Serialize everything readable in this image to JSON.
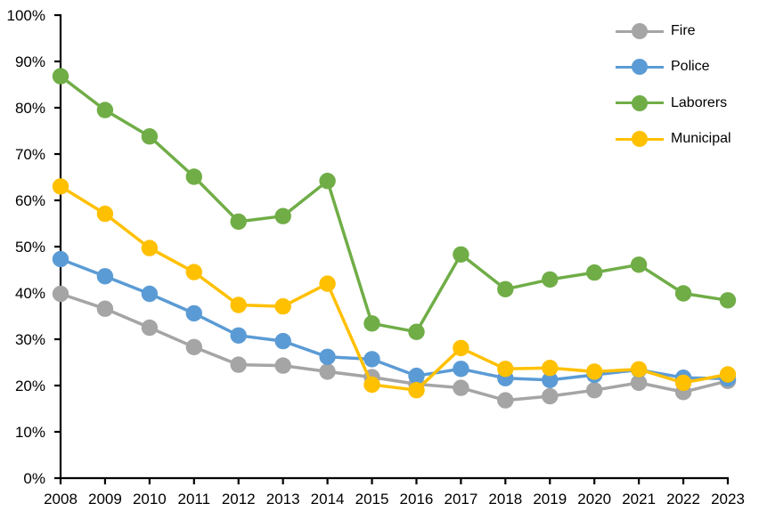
{
  "chart_data": {
    "type": "line",
    "x": [
      "2008",
      "2009",
      "2010",
      "2011",
      "2012",
      "2013",
      "2014",
      "2015",
      "2016",
      "2017",
      "2018",
      "2019",
      "2020",
      "2021",
      "2022",
      "2023"
    ],
    "series": [
      {
        "name": "Fire",
        "color": "#A5A5A5",
        "values": [
          39.8,
          36.6,
          32.5,
          28.3,
          24.5,
          24.3,
          23.0,
          21.8,
          20.3,
          19.5,
          16.8,
          17.7,
          19.0,
          20.6,
          18.6,
          21.0
        ]
      },
      {
        "name": "Police",
        "color": "#5B9BD5",
        "values": [
          47.3,
          43.6,
          39.8,
          35.6,
          30.8,
          29.6,
          26.2,
          25.7,
          22.1,
          23.6,
          21.6,
          21.2,
          22.3,
          23.4,
          21.7,
          21.5
        ]
      },
      {
        "name": "Laborers",
        "color": "#70AD47",
        "values": [
          86.8,
          79.5,
          73.8,
          65.1,
          55.4,
          56.6,
          64.2,
          33.4,
          31.6,
          48.3,
          40.8,
          42.9,
          44.4,
          46.1,
          39.9,
          38.4
        ]
      },
      {
        "name": "Municipal",
        "color": "#FFC000",
        "values": [
          63.0,
          57.1,
          49.7,
          44.5,
          37.4,
          37.1,
          42.0,
          20.2,
          19.0,
          28.1,
          23.6,
          23.8,
          23.0,
          23.5,
          20.6,
          22.4
        ]
      }
    ],
    "title": "",
    "xlabel": "",
    "ylabel": "",
    "ylim": [
      0,
      100
    ],
    "y_tick_step": 10,
    "y_ticks": [
      "0%",
      "10%",
      "20%",
      "30%",
      "40%",
      "50%",
      "60%",
      "70%",
      "80%",
      "90%",
      "100%"
    ],
    "grid": false,
    "legend_position": "top-right-inside",
    "axis_color": "#000000"
  }
}
